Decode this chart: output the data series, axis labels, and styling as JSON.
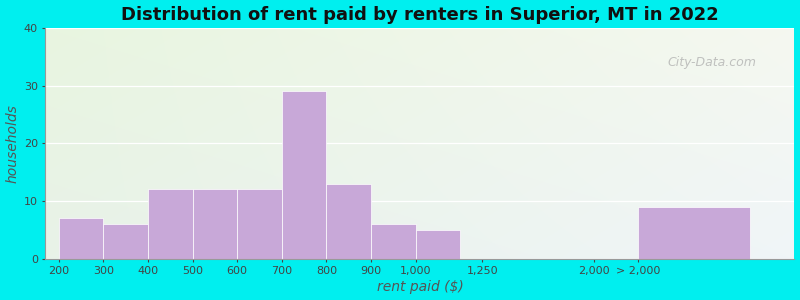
{
  "title": "Distribution of rent paid by renters in Superior, MT in 2022",
  "xlabel": "rent paid ($)",
  "ylabel": "households",
  "bar_color": "#c8a8d8",
  "background_outer": "#00efef",
  "ylim": [
    0,
    40
  ],
  "yticks": [
    0,
    10,
    20,
    30,
    40
  ],
  "categories": [
    "200",
    "300",
    "400",
    "500",
    "600",
    "700",
    "800",
    "900",
    "1,000",
    "1,250",
    "2,000",
    "> 2,000"
  ],
  "values": [
    7,
    6,
    12,
    12,
    12,
    29,
    13,
    6,
    5,
    0,
    0,
    9
  ],
  "bar_positions": [
    0,
    1,
    2,
    3,
    4,
    5,
    6,
    7,
    8,
    9.5,
    12,
    13
  ],
  "bar_widths": [
    1,
    1,
    1,
    1,
    1,
    1,
    1,
    1,
    1,
    1.5,
    1,
    2.5
  ],
  "tick_offsets": [
    0,
    1,
    2,
    3,
    4,
    5,
    6,
    7,
    8,
    9.5,
    12,
    13
  ],
  "watermark": "City-Data.com",
  "title_fontsize": 13,
  "axis_label_fontsize": 10,
  "tick_fontsize": 8,
  "xlim": [
    -0.3,
    16.5
  ]
}
